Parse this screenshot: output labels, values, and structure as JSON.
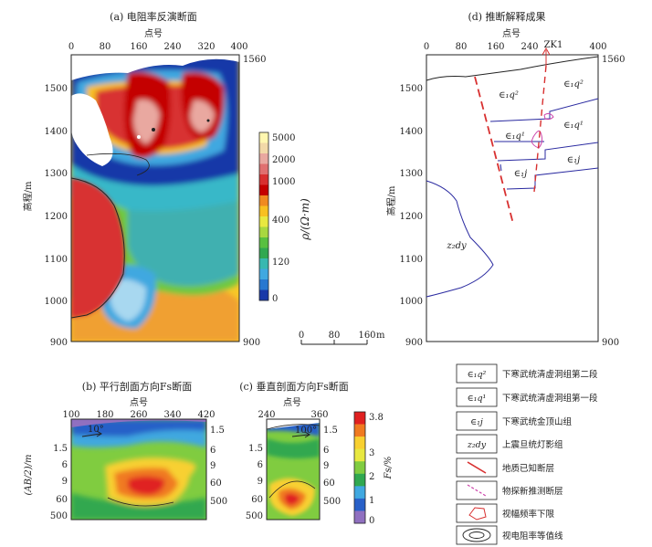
{
  "panels": {
    "a": {
      "title": "(a) 电阻率反演断面",
      "x_axis_label": "点号",
      "x_ticks": [
        "0",
        "80",
        "160",
        "240",
        "320",
        "400"
      ],
      "y_axis_label": "高程/m",
      "y_ticks": [
        "1500",
        "1400",
        "1300",
        "1200",
        "1100",
        "1000",
        "900"
      ],
      "right_top_label": "1560",
      "right_bottom_label": "900"
    },
    "colorbar": {
      "ticks": [
        "5000",
        "2000",
        "1000",
        "400",
        "120",
        "0"
      ],
      "label": "ρ/(Ω·m)",
      "colors": [
        "#fff7b0",
        "#f2d9a8",
        "#e9a8a0",
        "#e07070",
        "#d83030",
        "#c40000",
        "#f08a20",
        "#f8c020",
        "#e8e840",
        "#a8d840",
        "#58c040",
        "#30a850",
        "#38b8b0",
        "#40a8e0",
        "#2878d0",
        "#1838a8"
      ]
    },
    "scale_bar": {
      "ticks": [
        "0",
        "80",
        "160"
      ],
      "unit": "m"
    },
    "d": {
      "title": "(d) 推断解释成果",
      "x_axis_label": "点号",
      "x_ticks": [
        "0",
        "80",
        "160",
        "240",
        "320",
        "400"
      ],
      "y_ticks": [
        "1500",
        "1400",
        "1300",
        "1200",
        "1100",
        "1000",
        "900"
      ],
      "y_axis_label": "高程/m",
      "right_top_label": "1560",
      "right_bottom_label": "900",
      "well_label": "ZK1",
      "units": [
        "∈₁q²",
        "∈₁q²",
        "∈₁q¹",
        "∈₁q¹",
        "∈₁j",
        "∈₁j",
        "z₂dy"
      ]
    },
    "b": {
      "title": "(b) 平行剖面方向Fs断面",
      "x_axis_label": "点号",
      "x_ticks": [
        "100",
        "180",
        "260",
        "340",
        "420"
      ],
      "y_axis_label": "(AB/2)/m",
      "y_ticks_left": [
        "1.5",
        "6",
        "9",
        "60",
        "500"
      ],
      "y_ticks_right": [
        "1.5",
        "6",
        "9",
        "60",
        "500"
      ],
      "dip_label": "10°"
    },
    "c": {
      "title": "(c) 垂直剖面方向Fs断面",
      "x_axis_label": "点号",
      "x_ticks": [
        "240",
        "360"
      ],
      "y_ticks_left": [
        "1.5",
        "6",
        "9",
        "60",
        "500"
      ],
      "y_ticks_right": [
        "1.5",
        "6",
        "9",
        "60",
        "500"
      ],
      "dip_label": "100°"
    },
    "fs_colorbar": {
      "ticks": [
        "3.8",
        "3",
        "2",
        "1",
        "0"
      ],
      "label": "Fs/%",
      "colors": [
        "#e02020",
        "#f07a20",
        "#f8d030",
        "#e8e840",
        "#80cc40",
        "#30a850",
        "#40a8e0",
        "#2860c8",
        "#9070c0"
      ]
    }
  },
  "legend": {
    "items": [
      {
        "symbol": "∈₁q²",
        "text": "下寒武统清虚洞组第二段"
      },
      {
        "symbol": "∈₁q¹",
        "text": "下寒武统清虚洞组第一段"
      },
      {
        "symbol": "∈₁j",
        "text": "下寒武统金顶山组"
      },
      {
        "symbol": "z₂dy",
        "text": "上震旦统灯影组"
      },
      {
        "symbol": "solid-red-line",
        "text": "地质已知断层"
      },
      {
        "symbol": "dashed-red-line",
        "text": "物探新推测断层"
      },
      {
        "symbol": "pink-polygon",
        "text": "视幅频率下限"
      },
      {
        "symbol": "contour-ellipse",
        "text": "视电阻率等值线"
      }
    ]
  }
}
